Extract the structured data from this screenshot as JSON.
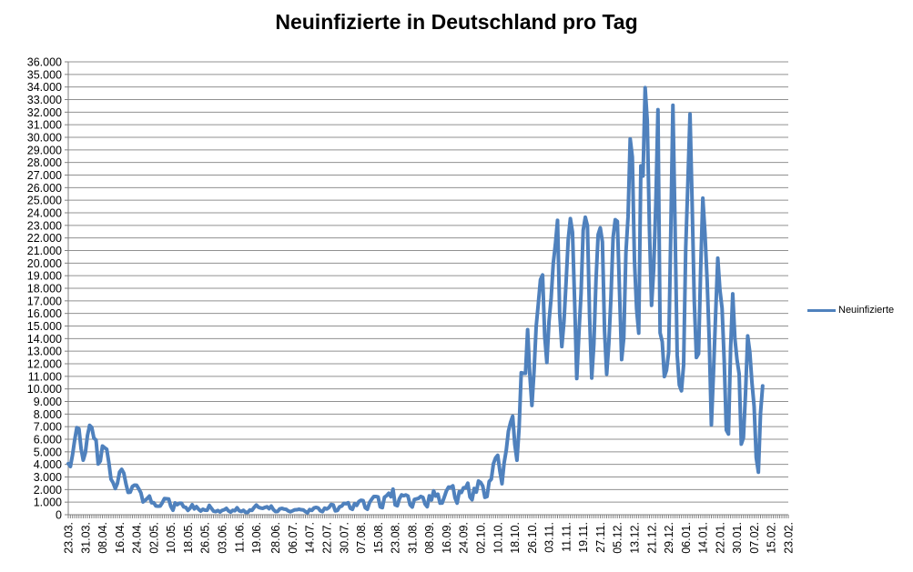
{
  "chart_data": {
    "type": "line",
    "title": "Neuinfizierte in Deutschland pro Tag",
    "legend": {
      "position": "right",
      "entries": [
        {
          "label": "Neuinfizierte",
          "color": "#4F81BD"
        }
      ]
    },
    "grid": true,
    "colors": {
      "line": "#4F81BD",
      "grid": "#909090",
      "axis": "#808080",
      "text": "#000000",
      "background": "#FFFFFF"
    },
    "y_axis": {
      "min": 0,
      "max": 36000,
      "step": 1000,
      "tick_labels": [
        "36.000",
        "35.000",
        "34.000",
        "33.000",
        "32.000",
        "31.000",
        "30.000",
        "29.000",
        "28.000",
        "27.000",
        "26.000",
        "25.000",
        "24.000",
        "23.000",
        "22.000",
        "21.000",
        "20.000",
        "19.000",
        "18.000",
        "17.000",
        "16.000",
        "15.000",
        "14.000",
        "13.000",
        "12.000",
        "11.000",
        "10.000",
        "9.000",
        "8.000",
        "7.000",
        "6.000",
        "5.000",
        "4.000",
        "3.000",
        "2.000",
        "1.000",
        "0"
      ]
    },
    "x_axis": {
      "slots": 338,
      "tick_labels": [
        {
          "label": "23.03.",
          "day": 0
        },
        {
          "label": "31.03.",
          "day": 8
        },
        {
          "label": "08.04.",
          "day": 16
        },
        {
          "label": "16.04.",
          "day": 24
        },
        {
          "label": "24.04.",
          "day": 32
        },
        {
          "label": "02.05.",
          "day": 40
        },
        {
          "label": "10.05.",
          "day": 48
        },
        {
          "label": "18.05.",
          "day": 56
        },
        {
          "label": "26.05.",
          "day": 64
        },
        {
          "label": "03.06.",
          "day": 72
        },
        {
          "label": "11.06.",
          "day": 80
        },
        {
          "label": "19.06.",
          "day": 88
        },
        {
          "label": "28.06.",
          "day": 97
        },
        {
          "label": "06.07.",
          "day": 105
        },
        {
          "label": "14.07.",
          "day": 113
        },
        {
          "label": "22.07.",
          "day": 121
        },
        {
          "label": "30.07.",
          "day": 129
        },
        {
          "label": "07.08.",
          "day": 137
        },
        {
          "label": "15.08.",
          "day": 145
        },
        {
          "label": "23.08.",
          "day": 153
        },
        {
          "label": "31.08.",
          "day": 161
        },
        {
          "label": "08.09.",
          "day": 169
        },
        {
          "label": "16.09.",
          "day": 177
        },
        {
          "label": "24.09.",
          "day": 185
        },
        {
          "label": "02.10.",
          "day": 193
        },
        {
          "label": "10.10.",
          "day": 201
        },
        {
          "label": "18.10.",
          "day": 209
        },
        {
          "label": "26.10.",
          "day": 217
        },
        {
          "label": "03.11.",
          "day": 225
        },
        {
          "label": "11.11.",
          "day": 233
        },
        {
          "label": "19.11.",
          "day": 241
        },
        {
          "label": "27.11.",
          "day": 249
        },
        {
          "label": "05.12.",
          "day": 257
        },
        {
          "label": "13.12.",
          "day": 265
        },
        {
          "label": "21.12.",
          "day": 273
        },
        {
          "label": "29.12.",
          "day": 281
        },
        {
          "label": "06.01.",
          "day": 289
        },
        {
          "label": "14.01.",
          "day": 297
        },
        {
          "label": "22.01.",
          "day": 305
        },
        {
          "label": "30.01.",
          "day": 313
        },
        {
          "label": "07.02.",
          "day": 321
        },
        {
          "label": "15.02.",
          "day": 329
        },
        {
          "label": "23.02.",
          "day": 337
        }
      ]
    },
    "series": [
      {
        "name": "Neuinfizierte",
        "color": "#4F81BD",
        "line_width": 4,
        "start_day": 0,
        "values": [
          4062,
          3834,
          4764,
          5940,
          6922,
          6824,
          5255,
          4339,
          4932,
          6306,
          7104,
          6933,
          6082,
          5936,
          4031,
          4271,
          5458,
          5323,
          5204,
          4133,
          2821,
          2537,
          2082,
          2486,
          3380,
          3609,
          3301,
          2458,
          1775,
          1785,
          2237,
          2352,
          2337,
          2055,
          1737,
          1018,
          1144,
          1304,
          1478,
          945,
          955,
          697,
          679,
          685,
          947,
          1284,
          1268,
          1251,
          667,
          357,
          933,
          798,
          913,
          913,
          620,
          583,
          342,
          513,
          797,
          460,
          638,
          431,
          289,
          432,
          361,
          353,
          741,
          507,
          286,
          247,
          333,
          213,
          342,
          394,
          507,
          301,
          214,
          350,
          318,
          555,
          318,
          258,
          348,
          192,
          186,
          378,
          345,
          580,
          770,
          601,
          537,
          503,
          577,
          630,
          477,
          687,
          409,
          256,
          262,
          466,
          503,
          446,
          422,
          301,
          239,
          312,
          390,
          397,
          442,
          395,
          378,
          248,
          159,
          412,
          345,
          534,
          583,
          529,
          305,
          249,
          522,
          454,
          569,
          815,
          781,
          305,
          340,
          633,
          684,
          902,
          870,
          955,
          509,
          432,
          879,
          741,
          1045,
          1147,
          1122,
          555,
          436,
          966,
          1226,
          1445,
          1449,
          1415,
          625,
          561,
          1390,
          1510,
          1707,
          1427,
          2034,
          782,
          711,
          1278,
          1576,
          1507,
          1571,
          1479,
          785,
          610,
          1218,
          1256,
          1311,
          1453,
          1378,
          847,
          633,
          1499,
          1176,
          1892,
          1484,
          1630,
          920,
          927,
          1407,
          1901,
          2194,
          2179,
          2297,
          1345,
          922,
          1821,
          1769,
          2143,
          2153,
          2507,
          1411,
          1192,
          2089,
          1798,
          2673,
          2563,
          2279,
          1382,
          1448,
          2639,
          2828,
          4058,
          4516,
          4721,
          3483,
          2467,
          4122,
          5132,
          6638,
          7334,
          7830,
          5587,
          4325,
          6868,
          11287,
          11242,
          11242,
          14714,
          11176,
          8685,
          11409,
          14964,
          16774,
          18681,
          19059,
          14177,
          12097,
          15352,
          17214,
          19990,
          21506,
          23399,
          16017,
          13363,
          15332,
          18487,
          21866,
          23542,
          22461,
          16947,
          10824,
          14419,
          17561,
          22609,
          23648,
          22964,
          15741,
          10864,
          13554,
          18633,
          22268,
          22806,
          21695,
          14611,
          11169,
          13604,
          17270,
          22046,
          23449,
          23318,
          17767,
          12332,
          14054,
          20815,
          23679,
          29875,
          28438,
          20200,
          16362,
          14432,
          27728,
          26923,
          33950,
          31300,
          22771,
          16643,
          19528,
          24740,
          32195,
          14455,
          13755,
          10976,
          11487,
          12892,
          22459,
          32552,
          22924,
          12690,
          10315,
          9847,
          11897,
          21237,
          26391,
          31849,
          24694,
          16946,
          12497,
          12802,
          19600,
          25164,
          22368,
          18678,
          13882,
          7141,
          11369,
          15974,
          20398,
          17862,
          16417,
          12257,
          6729,
          6412,
          13202,
          17553,
          14022,
          12321,
          11192,
          5608,
          6114,
          9705,
          14211,
          12908,
          10485,
          8616,
          4535,
          3379,
          8072,
          10237
        ]
      }
    ]
  }
}
